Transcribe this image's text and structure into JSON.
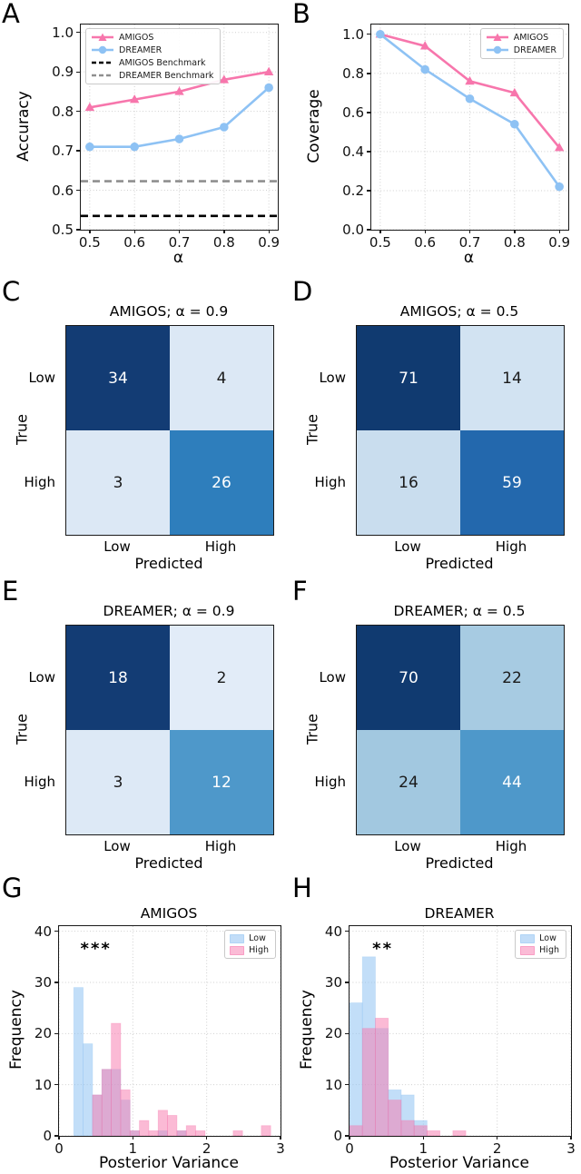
{
  "background_color": "#ffffff",
  "palette": {
    "amigos_pink": "#f776ac",
    "dreamer_blue": "#8ec2f4",
    "benchmark_black": "#000000",
    "benchmark_gray": "#8f8f8f",
    "grid_gray": "#cfcfcf"
  },
  "chart_data": [
    {
      "panel_label": "A",
      "type": "line",
      "xlabel": "α",
      "ylabel": "Accuracy",
      "x": [
        0.5,
        0.6,
        0.7,
        0.8,
        0.9
      ],
      "series": [
        {
          "name": "AMIGOS",
          "marker": "triangle",
          "color": "#f776ac",
          "values": [
            0.81,
            0.83,
            0.85,
            0.88,
            0.9
          ]
        },
        {
          "name": "DREAMER",
          "marker": "circle",
          "color": "#8ec2f4",
          "values": [
            0.71,
            0.71,
            0.73,
            0.76,
            0.86
          ]
        }
      ],
      "benchmarks": [
        {
          "name": "AMIGOS Benchmark",
          "color": "#000000",
          "y": 0.535
        },
        {
          "name": "DREAMER Benchmark",
          "color": "#8f8f8f",
          "y": 0.623
        }
      ],
      "xlim": [
        0.48,
        0.92
      ],
      "ylim": [
        0.5,
        1.02
      ],
      "xticks": [
        0.5,
        0.6,
        0.7,
        0.8,
        0.9
      ],
      "xtick_labels": [
        "0.5",
        "0.6",
        "0.7",
        "0.8",
        "0.9"
      ],
      "yticks": [
        0.5,
        0.6,
        0.7,
        0.8,
        0.9,
        1.0
      ],
      "ytick_labels": [
        "0.5",
        "0.6",
        "0.7",
        "0.8",
        "0.9",
        "1.0"
      ],
      "legend_pos": "top-left",
      "grid": true
    },
    {
      "panel_label": "B",
      "type": "line",
      "xlabel": "α",
      "ylabel": "Coverage",
      "x": [
        0.5,
        0.6,
        0.7,
        0.8,
        0.9
      ],
      "series": [
        {
          "name": "AMIGOS",
          "marker": "triangle",
          "color": "#f776ac",
          "values": [
            1.0,
            0.94,
            0.76,
            0.7,
            0.42
          ]
        },
        {
          "name": "DREAMER",
          "marker": "circle",
          "color": "#8ec2f4",
          "values": [
            1.0,
            0.82,
            0.67,
            0.54,
            0.22
          ]
        }
      ],
      "benchmarks": [],
      "xlim": [
        0.48,
        0.92
      ],
      "ylim": [
        0.0,
        1.05
      ],
      "xticks": [
        0.5,
        0.6,
        0.7,
        0.8,
        0.9
      ],
      "xtick_labels": [
        "0.5",
        "0.6",
        "0.7",
        "0.8",
        "0.9"
      ],
      "yticks": [
        0.0,
        0.2,
        0.4,
        0.6,
        0.8,
        1.0
      ],
      "ytick_labels": [
        "0.0",
        "0.2",
        "0.4",
        "0.6",
        "0.8",
        "1.0"
      ],
      "legend_pos": "top-right",
      "grid": true
    },
    {
      "panel_label": "C",
      "type": "heatmap",
      "title": "AMIGOS; α = 0.9",
      "xlabel": "Predicted",
      "ylabel": "True",
      "row_labels": [
        "Low",
        "High"
      ],
      "col_labels": [
        "Low",
        "High"
      ],
      "values": [
        [
          34,
          4
        ],
        [
          3,
          26
        ]
      ],
      "cell_colors": [
        [
          "#133c74",
          "#dce8f5"
        ],
        [
          "#dce8f5",
          "#2e7ebc"
        ]
      ],
      "cell_text_colors": [
        [
          "#ffffff",
          "#1a1a1a"
        ],
        [
          "#1a1a1a",
          "#ffffff"
        ]
      ]
    },
    {
      "panel_label": "D",
      "type": "heatmap",
      "title": "AMIGOS; α = 0.5",
      "xlabel": "Predicted",
      "ylabel": "True",
      "row_labels": [
        "Low",
        "High"
      ],
      "col_labels": [
        "Low",
        "High"
      ],
      "values": [
        [
          71,
          14
        ],
        [
          16,
          59
        ]
      ],
      "cell_colors": [
        [
          "#103a70",
          "#d2e3f2"
        ],
        [
          "#c9ddee",
          "#2368ad"
        ]
      ],
      "cell_text_colors": [
        [
          "#ffffff",
          "#1a1a1a"
        ],
        [
          "#1a1a1a",
          "#ffffff"
        ]
      ]
    },
    {
      "panel_label": "E",
      "type": "heatmap",
      "title": "DREAMER; α = 0.9",
      "xlabel": "Predicted",
      "ylabel": "True",
      "row_labels": [
        "Low",
        "High"
      ],
      "col_labels": [
        "Low",
        "High"
      ],
      "values": [
        [
          18,
          2
        ],
        [
          3,
          12
        ]
      ],
      "cell_colors": [
        [
          "#133c74",
          "#e2ecf8"
        ],
        [
          "#dde9f6",
          "#4e98ca"
        ]
      ],
      "cell_text_colors": [
        [
          "#ffffff",
          "#1a1a1a"
        ],
        [
          "#1a1a1a",
          "#ffffff"
        ]
      ]
    },
    {
      "panel_label": "F",
      "type": "heatmap",
      "title": "DREAMER; α = 0.5",
      "xlabel": "Predicted",
      "ylabel": "True",
      "row_labels": [
        "Low",
        "High"
      ],
      "col_labels": [
        "Low",
        "High"
      ],
      "values": [
        [
          70,
          22
        ],
        [
          24,
          44
        ]
      ],
      "cell_colors": [
        [
          "#103a70",
          "#a7cbe2"
        ],
        [
          "#a2c8e0",
          "#4e98ca"
        ]
      ],
      "cell_text_colors": [
        [
          "#ffffff",
          "#1a1a1a"
        ],
        [
          "#1a1a1a",
          "#ffffff"
        ]
      ]
    },
    {
      "panel_label": "G",
      "type": "histogram",
      "title": "AMIGOS",
      "xlabel": "Posterior Variance",
      "ylabel": "Frequency",
      "annotation": {
        "text": "***",
        "x": 0.5,
        "y": 36.5
      },
      "xlim": [
        0,
        3
      ],
      "ylim": [
        0,
        41
      ],
      "xticks": [
        0,
        1,
        2,
        3
      ],
      "xtick_labels": [
        "0",
        "1",
        "2",
        "3"
      ],
      "yticks": [
        0,
        10,
        20,
        30,
        40
      ],
      "ytick_labels": [
        "0",
        "10",
        "20",
        "30",
        "40"
      ],
      "legend_pos": "top-right",
      "series": [
        {
          "name": "Low",
          "color": "#90c3f2",
          "alpha": 0.55,
          "legend_color": "#c2ddf8",
          "bars": [
            [
              0.2,
              0.127,
              29
            ],
            [
              0.327,
              0.127,
              18
            ],
            [
              0.454,
              0.127,
              8
            ],
            [
              0.581,
              0.127,
              13
            ],
            [
              0.708,
              0.127,
              13
            ],
            [
              0.835,
              0.127,
              7
            ],
            [
              0.962,
              0.127,
              1
            ],
            [
              1.343,
              0.127,
              1
            ],
            [
              1.597,
              0.127,
              1
            ]
          ]
        },
        {
          "name": "High",
          "color": "#f776ac",
          "alpha": 0.5,
          "legend_color": "#fbbbd6",
          "bars": [
            [
              0.454,
              0.127,
              8
            ],
            [
              0.581,
              0.127,
              13
            ],
            [
              0.708,
              0.127,
              22
            ],
            [
              0.835,
              0.127,
              9
            ],
            [
              0.962,
              0.127,
              1
            ],
            [
              1.089,
              0.127,
              3
            ],
            [
              1.216,
              0.127,
              1
            ],
            [
              1.343,
              0.127,
              5
            ],
            [
              1.47,
              0.127,
              4
            ],
            [
              1.597,
              0.127,
              1
            ],
            [
              1.724,
              0.127,
              2
            ],
            [
              1.851,
              0.127,
              1
            ],
            [
              2.359,
              0.127,
              1
            ],
            [
              2.74,
              0.127,
              2
            ]
          ]
        }
      ]
    },
    {
      "panel_label": "H",
      "type": "histogram",
      "title": "DREAMER",
      "xlabel": "Posterior Variance",
      "ylabel": "Frequency",
      "annotation": {
        "text": "**",
        "x": 0.45,
        "y": 36.5
      },
      "xlim": [
        0,
        3
      ],
      "ylim": [
        0,
        41
      ],
      "xticks": [
        0,
        1,
        2,
        3
      ],
      "xtick_labels": [
        "0",
        "1",
        "2",
        "3"
      ],
      "yticks": [
        0,
        10,
        20,
        30,
        40
      ],
      "ytick_labels": [
        "0",
        "10",
        "20",
        "30",
        "40"
      ],
      "legend_pos": "top-right",
      "series": [
        {
          "name": "Low",
          "color": "#90c3f2",
          "alpha": 0.55,
          "legend_color": "#c2ddf8",
          "bars": [
            [
              0.0,
              0.175,
              26
            ],
            [
              0.175,
              0.175,
              35
            ],
            [
              0.35,
              0.175,
              21
            ],
            [
              0.525,
              0.175,
              9
            ],
            [
              0.7,
              0.175,
              8
            ],
            [
              0.875,
              0.175,
              3
            ]
          ]
        },
        {
          "name": "High",
          "color": "#f776ac",
          "alpha": 0.5,
          "legend_color": "#fbbbd6",
          "bars": [
            [
              0.0,
              0.175,
              2
            ],
            [
              0.175,
              0.175,
              21
            ],
            [
              0.35,
              0.175,
              23
            ],
            [
              0.525,
              0.175,
              7
            ],
            [
              0.7,
              0.175,
              3
            ],
            [
              0.875,
              0.175,
              2
            ],
            [
              1.05,
              0.175,
              1
            ],
            [
              1.4,
              0.175,
              1
            ]
          ]
        }
      ]
    }
  ]
}
